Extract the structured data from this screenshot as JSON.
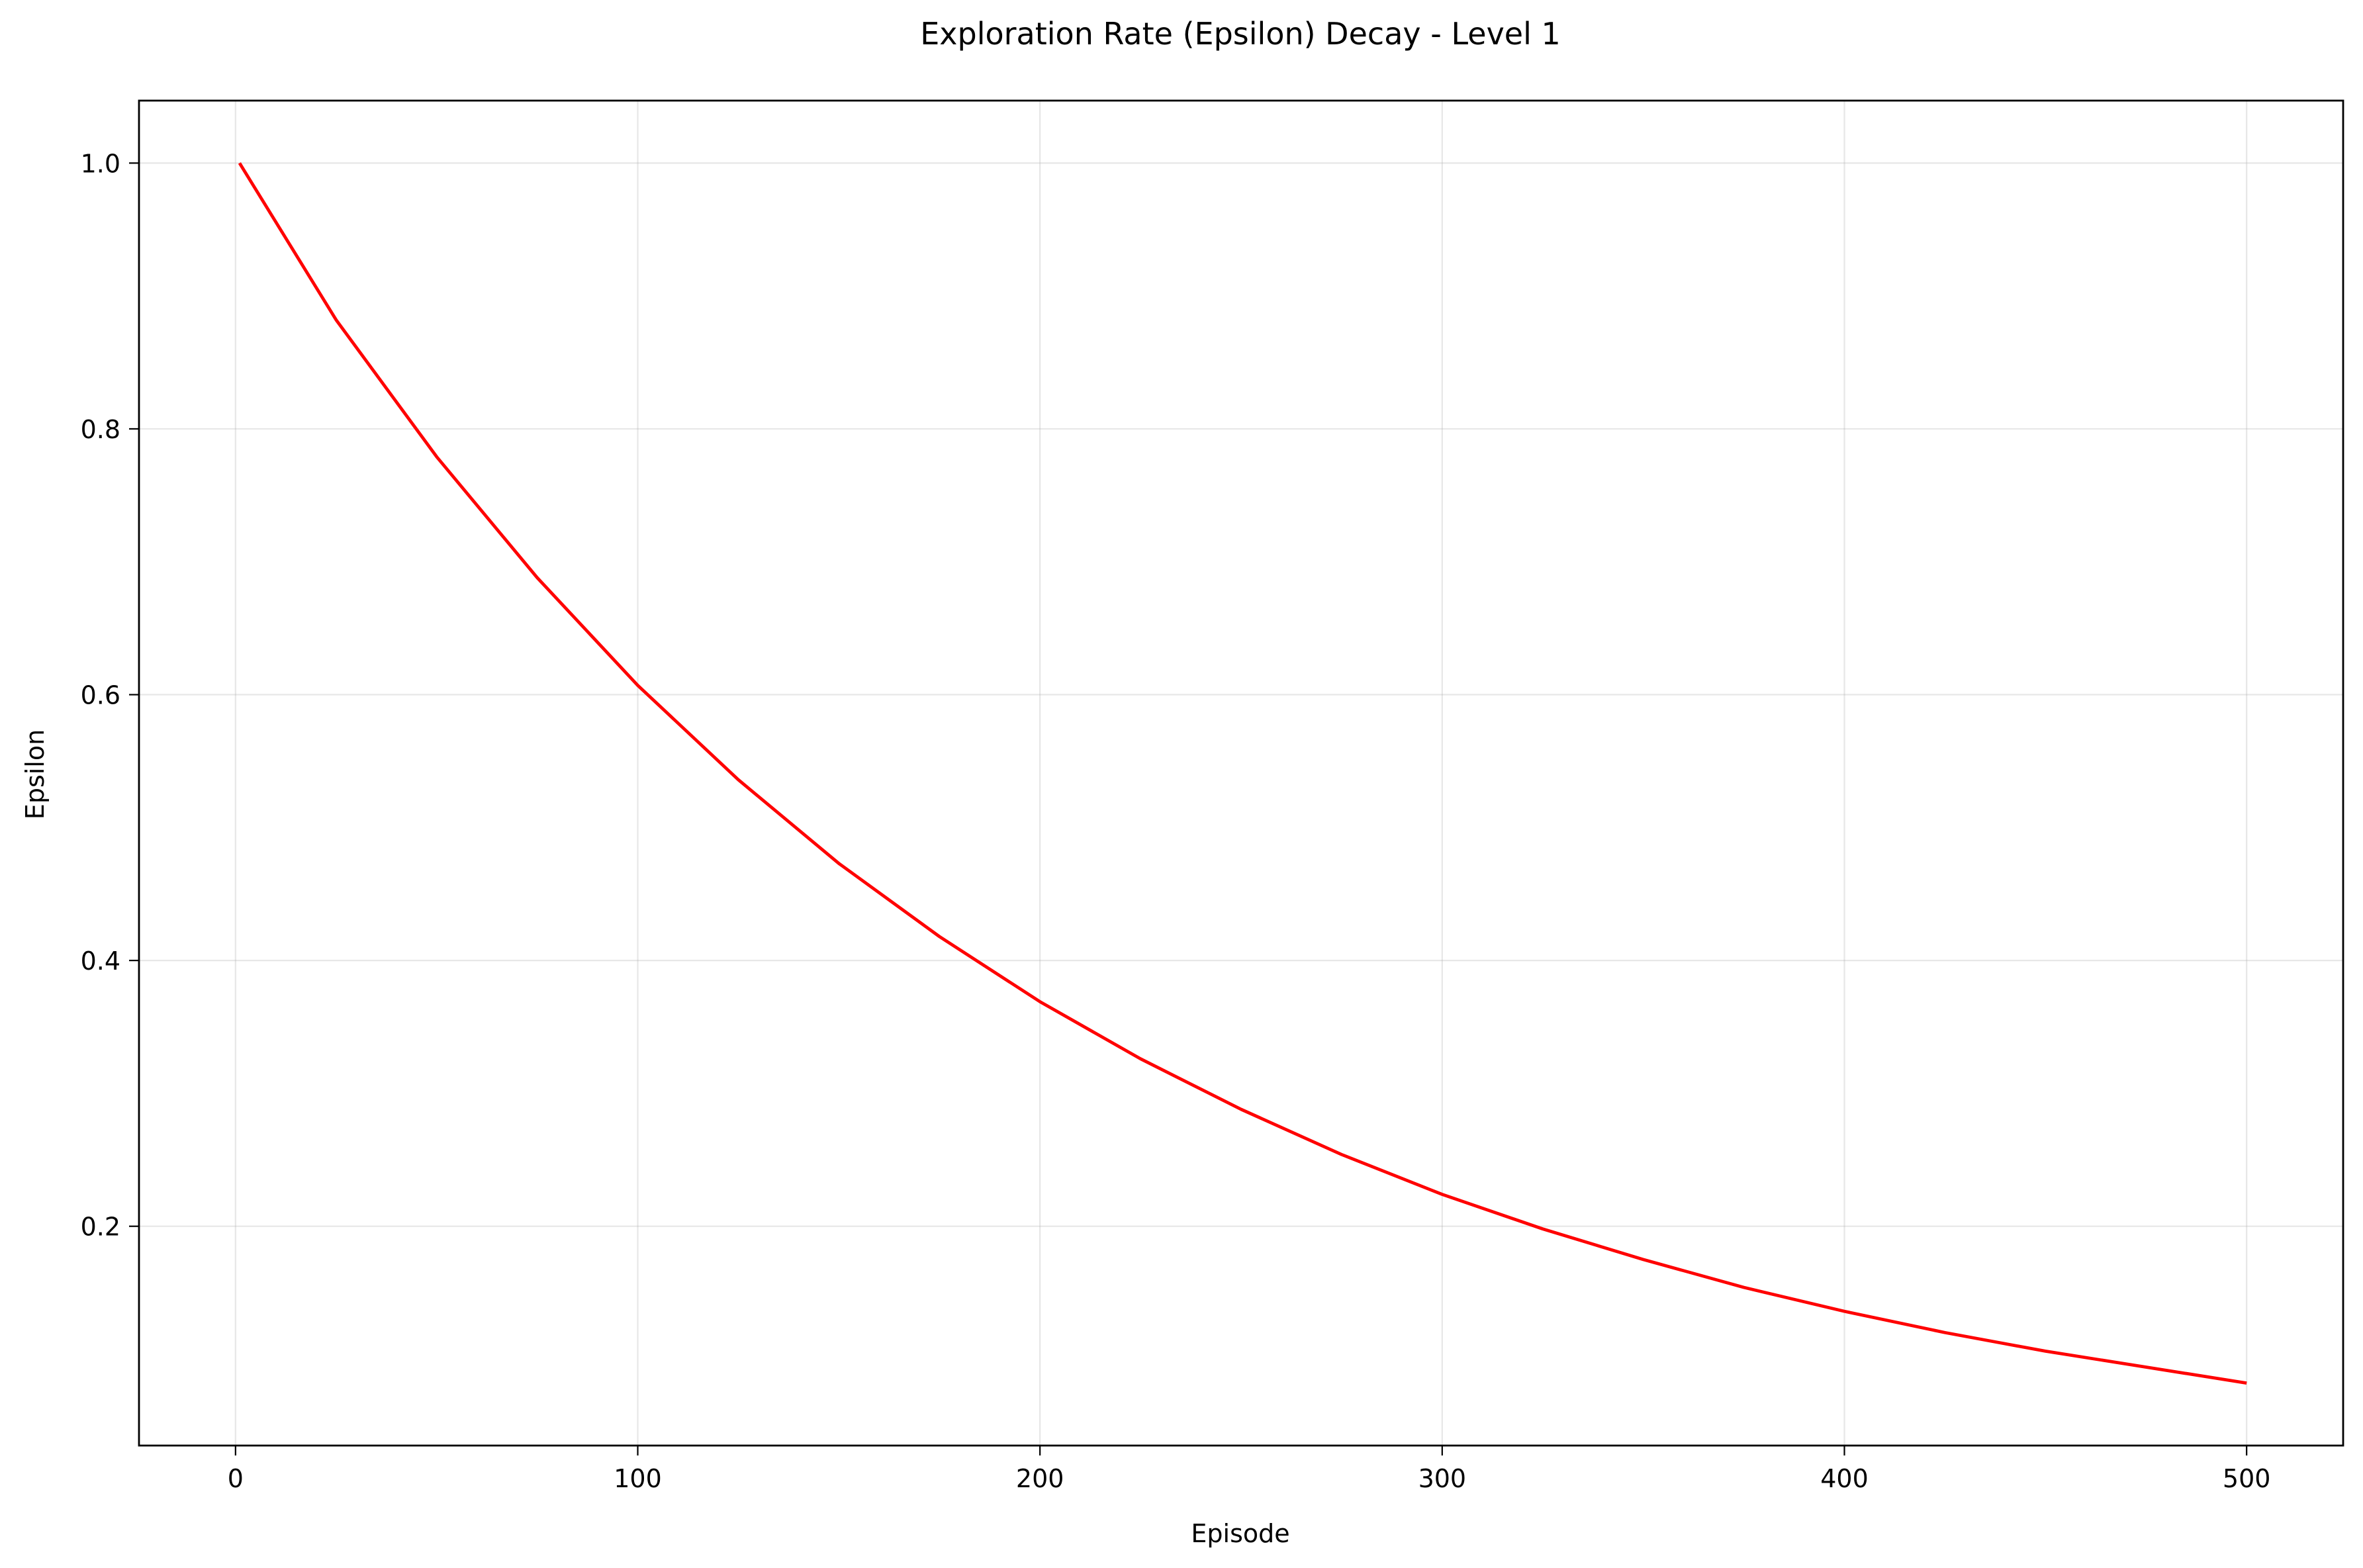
{
  "chart_data": {
    "type": "line",
    "title": "Exploration Rate (Epsilon) Decay - Level 1",
    "xlabel": "Episode",
    "ylabel": "Epsilon",
    "xlim": [
      -24,
      524
    ],
    "ylim": [
      0.035,
      1.047
    ],
    "xticks": [
      0,
      100,
      200,
      300,
      400,
      500
    ],
    "xtick_labels": [
      "0",
      "100",
      "200",
      "300",
      "400",
      "500"
    ],
    "yticks": [
      0.2,
      0.4,
      0.6,
      0.8,
      1.0
    ],
    "ytick_labels": [
      "0.2",
      "0.4",
      "0.6",
      "0.8",
      "1.0"
    ],
    "grid": true,
    "legend": "none",
    "series": [
      {
        "color": "#ff0000",
        "x": [
          1,
          25,
          50,
          75,
          100,
          125,
          150,
          175,
          200,
          225,
          250,
          275,
          300,
          325,
          350,
          375,
          400,
          425,
          450,
          475,
          500
        ],
        "y": [
          1.0,
          0.882,
          0.779,
          0.688,
          0.607,
          0.536,
          0.473,
          0.418,
          0.369,
          0.326,
          0.288,
          0.254,
          0.224,
          0.198,
          0.175,
          0.154,
          0.136,
          0.12,
          0.106,
          0.094,
          0.082
        ]
      }
    ]
  }
}
